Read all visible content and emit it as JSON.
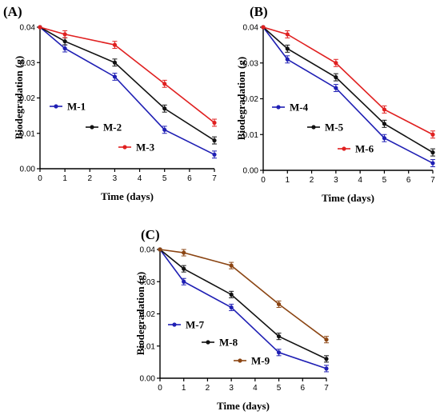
{
  "chart_data": [
    {
      "type": "line",
      "panel_label": "(A)",
      "xlabel": "Time (days)",
      "ylabel": "Biodegradation (g)",
      "xlim": [
        0,
        7
      ],
      "ylim": [
        0,
        0.04
      ],
      "xticks": [
        "0",
        "1",
        "2",
        "3",
        "4",
        "5",
        "6",
        "7"
      ],
      "yticks": [
        "0.00",
        "0.01",
        "0.02",
        "0.03",
        "0.04"
      ],
      "x": [
        0,
        1,
        3,
        5,
        7
      ],
      "grid": false,
      "legend_position": "lower-left, staggered",
      "series": [
        {
          "name": "M-1",
          "color": "#1f1fb4",
          "values": [
            0.04,
            0.034,
            0.026,
            0.011,
            0.004
          ],
          "errors": [
            0,
            0.001,
            0.001,
            0.001,
            0.001
          ]
        },
        {
          "name": "M-2",
          "color": "#111111",
          "values": [
            0.04,
            0.036,
            0.03,
            0.017,
            0.008
          ],
          "errors": [
            0,
            0.001,
            0.001,
            0.001,
            0.001
          ]
        },
        {
          "name": "M-3",
          "color": "#e02020",
          "values": [
            0.04,
            0.038,
            0.035,
            0.024,
            0.013
          ],
          "errors": [
            0,
            0.001,
            0.001,
            0.001,
            0.001
          ]
        }
      ]
    },
    {
      "type": "line",
      "panel_label": "(B)",
      "xlabel": "Time (days)",
      "ylabel": "Biodegradation (g)",
      "xlim": [
        0,
        7
      ],
      "ylim": [
        0,
        0.04
      ],
      "xticks": [
        "0",
        "1",
        "2",
        "3",
        "4",
        "5",
        "6",
        "7"
      ],
      "yticks": [
        "0.00",
        "0.01",
        "0.02",
        "0.03",
        "0.04"
      ],
      "x": [
        0,
        1,
        3,
        5,
        7
      ],
      "grid": false,
      "legend_position": "lower-left, staggered",
      "series": [
        {
          "name": "M-4",
          "color": "#1f1fb4",
          "values": [
            0.04,
            0.031,
            0.023,
            0.009,
            0.002
          ],
          "errors": [
            0,
            0.001,
            0.001,
            0.001,
            0.001
          ]
        },
        {
          "name": "M-5",
          "color": "#111111",
          "values": [
            0.04,
            0.034,
            0.026,
            0.013,
            0.005
          ],
          "errors": [
            0,
            0.001,
            0.001,
            0.001,
            0.001
          ]
        },
        {
          "name": "M-6",
          "color": "#e02020",
          "values": [
            0.04,
            0.038,
            0.03,
            0.017,
            0.01
          ],
          "errors": [
            0,
            0.001,
            0.001,
            0.001,
            0.001
          ]
        }
      ]
    },
    {
      "type": "line",
      "panel_label": "(C)",
      "xlabel": "Time (days)",
      "ylabel": "Biodegradation (g)",
      "xlim": [
        0,
        7
      ],
      "ylim": [
        0,
        0.04
      ],
      "xticks": [
        "0",
        "1",
        "2",
        "3",
        "4",
        "5",
        "6",
        "7"
      ],
      "yticks": [
        "0.00",
        "0.01",
        "0.02",
        "0.03",
        "0.04"
      ],
      "x": [
        0,
        1,
        3,
        5,
        7
      ],
      "grid": false,
      "legend_position": "lower-left, staggered",
      "series": [
        {
          "name": "M-7",
          "color": "#1f1fb4",
          "values": [
            0.04,
            0.03,
            0.022,
            0.008,
            0.003
          ],
          "errors": [
            0,
            0.001,
            0.001,
            0.001,
            0.001
          ]
        },
        {
          "name": "M-8",
          "color": "#111111",
          "values": [
            0.04,
            0.034,
            0.026,
            0.013,
            0.006
          ],
          "errors": [
            0,
            0.001,
            0.001,
            0.001,
            0.001
          ]
        },
        {
          "name": "M-9",
          "color": "#8b4513",
          "values": [
            0.04,
            0.039,
            0.035,
            0.023,
            0.012
          ],
          "errors": [
            0,
            0.001,
            0.001,
            0.001,
            0.001
          ]
        }
      ]
    }
  ]
}
